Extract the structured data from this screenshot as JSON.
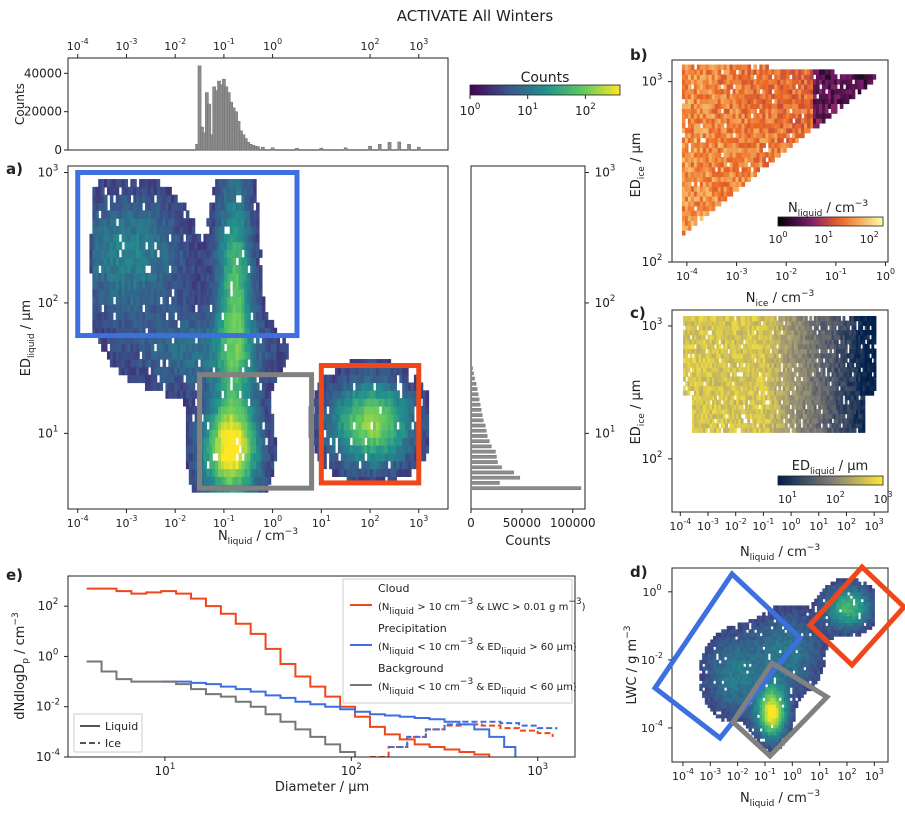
{
  "title": "ACTIVATE All Winters",
  "chart_data": [
    {
      "panel": "top-histogram",
      "type": "bar",
      "ylabel": "Counts",
      "yticks": [
        "0",
        "20000",
        "40000"
      ],
      "xticks": [
        "10",
        "10",
        "10",
        "10",
        "10",
        "10",
        "10"
      ],
      "xtick_exp": [
        "-4",
        "-3",
        "-2",
        "-1",
        "0",
        "2",
        "3"
      ],
      "xtick_vals": [
        -4,
        -3,
        -2,
        -1,
        0,
        2,
        3
      ],
      "x_log": [
        -1.55,
        -1.5,
        -1.45,
        -1.4,
        -1.35,
        -1.3,
        -1.25,
        -1.2,
        -1.15,
        -1.1,
        -1.05,
        -1.0,
        -0.95,
        -0.9,
        -0.85,
        -0.8,
        -0.75,
        -0.7,
        -0.65,
        -0.6,
        -0.55,
        -0.5,
        -0.45,
        -0.4,
        -0.35,
        -0.3,
        -0.2,
        0.0,
        0.5,
        1.0,
        1.5,
        2.0,
        2.2,
        2.4,
        2.6,
        2.8,
        3.0
      ],
      "values": [
        3000,
        44000,
        12000,
        9000,
        30000,
        24000,
        8000,
        33000,
        31000,
        36000,
        34000,
        37000,
        33000,
        30000,
        25000,
        22000,
        20000,
        15000,
        10000,
        8000,
        6000,
        4000,
        3000,
        2500,
        2000,
        1800,
        1500,
        1200,
        900,
        1000,
        1200,
        2000,
        3000,
        4000,
        4200,
        3000,
        1500
      ],
      "ylim": [
        0,
        48000
      ]
    },
    {
      "panel": "right-histogram",
      "type": "bar",
      "orientation": "horizontal",
      "xlabel": "Counts",
      "xticks": [
        "0",
        "50000",
        "100000"
      ],
      "yticks": [
        "10",
        "10",
        "10"
      ],
      "ytick_exp": [
        "1",
        "2",
        "3"
      ],
      "ytick_vals": [
        1,
        2,
        3
      ],
      "y_log": [
        0.58,
        0.62,
        0.66,
        0.7,
        0.74,
        0.78,
        0.82,
        0.86,
        0.9,
        0.94,
        0.98,
        1.02,
        1.06,
        1.1,
        1.14,
        1.18,
        1.22,
        1.26,
        1.3,
        1.34,
        1.38,
        1.42,
        1.46,
        1.5
      ],
      "values": [
        108000,
        28000,
        48000,
        42000,
        30000,
        26000,
        25000,
        24000,
        20000,
        18000,
        16000,
        15000,
        14000,
        12000,
        11000,
        10000,
        9000,
        8000,
        7000,
        6000,
        5000,
        3500,
        2500,
        1500
      ],
      "xlim": [
        0,
        112000
      ]
    },
    {
      "panel": "a",
      "type": "heatmap",
      "label": "a)",
      "xlabel": "N",
      "xlabel_sub": "liquid",
      "xlabel_unit": " / cm",
      "xlabel_sup": "−3",
      "ylabel": "ED",
      "ylabel_sub": "liquid",
      "ylabel_unit": " / µm",
      "xticks": [
        "10",
        "10",
        "10",
        "10",
        "10",
        "10",
        "10",
        "10"
      ],
      "xtick_exp": [
        "-4",
        "-3",
        "-2",
        "-1",
        "0",
        "1",
        "2",
        "3"
      ],
      "xtick_vals": [
        -4,
        -3,
        -2,
        -1,
        0,
        1,
        2,
        3
      ],
      "yticks": [
        "10",
        "10",
        "10"
      ],
      "ytick_exp": [
        "1",
        "2",
        "3"
      ],
      "ytick_vals": [
        1,
        2,
        3
      ],
      "colorbar_label": "Counts",
      "colorbar_ticks": [
        "10",
        "10",
        "10"
      ],
      "colorbar_exp": [
        "0",
        "1",
        "2"
      ],
      "regions": [
        {
          "name": "precipitation",
          "color": "#3d6fe0",
          "x_log": [
            -4.0,
            0.5
          ],
          "y_log": [
            1.75,
            3.0
          ]
        },
        {
          "name": "background",
          "color": "#808080",
          "x_log": [
            -1.5,
            0.8
          ],
          "y_log": [
            0.58,
            1.45
          ]
        },
        {
          "name": "cloud",
          "color": "#f0471a",
          "x_log": [
            1.0,
            3.0
          ],
          "y_log": [
            0.62,
            1.52
          ]
        }
      ]
    },
    {
      "panel": "b",
      "type": "heatmap",
      "label": "b)",
      "xlabel": "N",
      "xlabel_sub": "ice",
      "xlabel_unit": " / cm",
      "xlabel_sup": "−3",
      "ylabel": "ED",
      "ylabel_sub": "ice",
      "ylabel_unit": " / µm",
      "xticks": [
        "10",
        "10",
        "10",
        "10",
        "10"
      ],
      "xtick_exp": [
        "-4",
        "-3",
        "-2",
        "-1",
        "0"
      ],
      "xtick_vals": [
        -4,
        -3,
        -2,
        -1,
        0
      ],
      "yticks": [
        "10",
        "10"
      ],
      "ytick_exp": [
        "2",
        "3"
      ],
      "ytick_vals": [
        2,
        3
      ],
      "colorbar_label": "N",
      "colorbar_label_sub": "liquid",
      "colorbar_label_unit": " / cm",
      "colorbar_label_sup": "−3",
      "colorbar_ticks": [
        "10",
        "10",
        "10"
      ],
      "colorbar_exp": [
        "0",
        "1",
        "2"
      ]
    },
    {
      "panel": "c",
      "type": "heatmap",
      "label": "c)",
      "xlabel": "N",
      "xlabel_sub": "liquid",
      "xlabel_unit": " / cm",
      "xlabel_sup": "−3",
      "ylabel": "ED",
      "ylabel_sub": "ice",
      "ylabel_unit": " / µm",
      "xticks": [
        "10",
        "10",
        "10",
        "10",
        "10",
        "10",
        "10",
        "10"
      ],
      "xtick_exp": [
        "-4",
        "-3",
        "-2",
        "-1",
        "0",
        "1",
        "2",
        "3"
      ],
      "xtick_vals": [
        -4,
        -3,
        -2,
        -1,
        0,
        1,
        2,
        3
      ],
      "yticks": [
        "10",
        "10"
      ],
      "ytick_exp": [
        "2",
        "3"
      ],
      "ytick_vals": [
        2,
        3
      ],
      "colorbar_label": "ED",
      "colorbar_label_sub": "liquid",
      "colorbar_label_unit": " / µm",
      "colorbar_ticks": [
        "10",
        "10",
        "10"
      ],
      "colorbar_exp": [
        "1",
        "2",
        "3"
      ]
    },
    {
      "panel": "d",
      "type": "heatmap",
      "label": "d)",
      "xlabel": "N",
      "xlabel_sub": "liquid",
      "xlabel_unit": " / cm",
      "xlabel_sup": "−3",
      "ylabel": "LWC / g m",
      "ylabel_sup": "−3",
      "xticks": [
        "10",
        "10",
        "10",
        "10",
        "10",
        "10",
        "10",
        "10"
      ],
      "xtick_exp": [
        "-4",
        "-3",
        "-2",
        "-1",
        "0",
        "1",
        "2",
        "3"
      ],
      "xtick_vals": [
        -4,
        -3,
        -2,
        -1,
        0,
        1,
        2,
        3
      ],
      "yticks": [
        "10",
        "10",
        "10"
      ],
      "ytick_exp": [
        "-4",
        "-2",
        "0"
      ],
      "ytick_vals": [
        -4,
        -2,
        0
      ]
    },
    {
      "panel": "e",
      "type": "line",
      "label": "e)",
      "xlabel": "Diameter / µm",
      "ylabel": "dNdlogD",
      "ylabel_sub": "p",
      "ylabel_unit": " / cm",
      "ylabel_sup": "−3",
      "xticks": [
        "10",
        "10",
        "10"
      ],
      "xtick_exp": [
        "1",
        "2",
        "3"
      ],
      "xtick_vals": [
        1,
        2,
        3
      ],
      "yticks": [
        "10",
        "10",
        "10",
        "10"
      ],
      "ytick_exp": [
        "-4",
        "-2",
        "0",
        "2"
      ],
      "ytick_vals": [
        -4,
        -2,
        0,
        2
      ],
      "xlim_log": [
        0.48,
        3.2
      ],
      "ylim_log": [
        -4,
        3.2
      ],
      "legend_style": [
        {
          "name": "Liquid",
          "dash": ""
        },
        {
          "name": "Ice",
          "dash": "6,3"
        }
      ],
      "legend": [
        {
          "name": "Cloud",
          "color": "#f0471a",
          "condition": "(N",
          "c_sub1": "liquid",
          "c_mid": " > 10 cm",
          "c_sup1": "−3",
          "c_mid2": " & LWC > 0.01 g m",
          "c_sup2": "−3",
          "c_end": ")"
        },
        {
          "name": "Precipitation",
          "color": "#3d6fe0",
          "condition": "(N",
          "c_sub1": "liquid",
          "c_mid": " < 10 cm",
          "c_sup1": "−3",
          "c_mid2": " & ED",
          "c_sub2": "liquid",
          "c_end": " > 60 µm)"
        },
        {
          "name": "Background",
          "color": "#777777",
          "condition": "(N",
          "c_sub1": "liquid",
          "c_mid": " < 10 cm",
          "c_sup1": "−3",
          "c_mid2": " & ED",
          "c_sub2": "liquid",
          "c_end": " < 60 µm)"
        }
      ],
      "series": [
        {
          "color": "#f0471a",
          "dash": "",
          "x_log": [
            0.58,
            0.66,
            0.74,
            0.82,
            0.9,
            0.98,
            1.06,
            1.14,
            1.22,
            1.3,
            1.38,
            1.46,
            1.54,
            1.62,
            1.7,
            1.78,
            1.86,
            1.94,
            2.02,
            2.1,
            2.18,
            2.26,
            2.34,
            2.42,
            2.5,
            2.58,
            2.66,
            2.74
          ],
          "y_log": [
            2.7,
            2.7,
            2.6,
            2.5,
            2.55,
            2.6,
            2.5,
            2.3,
            2.0,
            1.7,
            1.3,
            0.9,
            0.3,
            -0.3,
            -0.8,
            -1.2,
            -1.6,
            -2.0,
            -2.4,
            -2.8,
            -3.1,
            -3.3,
            -3.5,
            -3.6,
            -3.7,
            -3.8,
            -3.9,
            -4.0
          ]
        },
        {
          "color": "#f0471a",
          "dash": "6,3",
          "x_log": [
            2.1,
            2.2,
            2.3,
            2.4,
            2.5,
            2.6,
            2.7,
            2.8,
            2.9,
            3.0,
            3.08
          ],
          "y_log": [
            -4.0,
            -3.6,
            -3.2,
            -2.9,
            -2.75,
            -2.7,
            -2.75,
            -2.85,
            -2.95,
            -3.05,
            -3.2
          ]
        },
        {
          "color": "#3d6fe0",
          "dash": "",
          "x_log": [
            0.98,
            1.06,
            1.14,
            1.22,
            1.3,
            1.38,
            1.46,
            1.54,
            1.62,
            1.7,
            1.78,
            1.86,
            1.94,
            2.02,
            2.1,
            2.18,
            2.26,
            2.34,
            2.42,
            2.5,
            2.58,
            2.66,
            2.74,
            2.82,
            2.88
          ],
          "y_log": [
            -1.0,
            -1.0,
            -1.05,
            -1.1,
            -1.2,
            -1.3,
            -1.4,
            -1.55,
            -1.65,
            -1.8,
            -1.9,
            -2.0,
            -2.1,
            -2.2,
            -2.3,
            -2.35,
            -2.4,
            -2.45,
            -2.5,
            -2.6,
            -2.7,
            -2.9,
            -3.2,
            -3.6,
            -4.0
          ]
        },
        {
          "color": "#3d6fe0",
          "dash": "6,3",
          "x_log": [
            2.2,
            2.3,
            2.4,
            2.5,
            2.6,
            2.7,
            2.8,
            2.9,
            3.0,
            3.1
          ],
          "y_log": [
            -3.6,
            -3.2,
            -2.9,
            -2.7,
            -2.6,
            -2.6,
            -2.65,
            -2.75,
            -2.85,
            -2.9
          ]
        },
        {
          "color": "#777777",
          "dash": "",
          "x_log": [
            0.58,
            0.66,
            0.74,
            0.82,
            0.9,
            0.98,
            1.06,
            1.14,
            1.22,
            1.3,
            1.38,
            1.46,
            1.54,
            1.62,
            1.7,
            1.78,
            1.86,
            1.94,
            2.02
          ],
          "y_log": [
            -0.2,
            -0.6,
            -0.9,
            -1.0,
            -1.0,
            -1.0,
            -1.1,
            -1.3,
            -1.5,
            -1.6,
            -1.8,
            -2.0,
            -2.3,
            -2.6,
            -2.9,
            -3.2,
            -3.5,
            -3.8,
            -4.0
          ]
        }
      ]
    }
  ]
}
